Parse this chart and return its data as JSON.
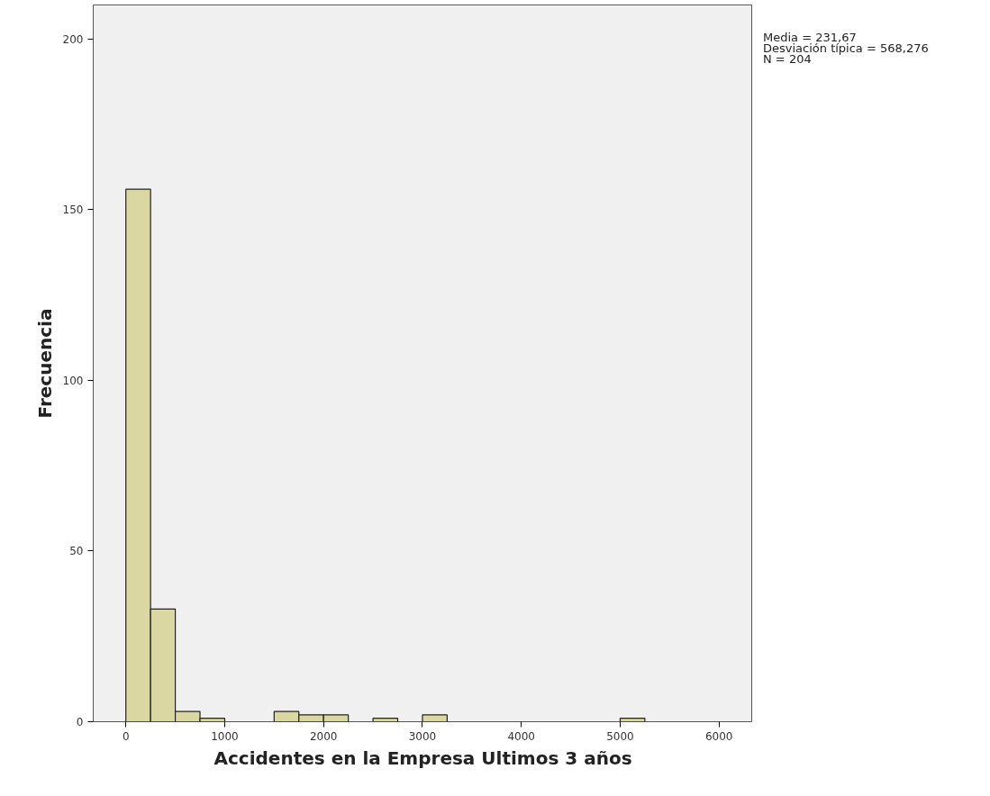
{
  "chart_data": {
    "type": "histogram",
    "xlabel": "Accidentes en la Empresa Ultimos 3 años",
    "ylabel": "Frecuencia",
    "bins": [
      0,
      250,
      500,
      750,
      1000,
      1250,
      1500,
      1750,
      2000,
      2250,
      2500,
      2750,
      3000,
      3250,
      3500,
      3750,
      4000,
      4250,
      4500,
      4750,
      5000,
      5250
    ],
    "values": [
      156,
      33,
      3,
      1,
      0,
      0,
      3,
      2,
      2,
      0,
      1,
      0,
      2,
      0,
      0,
      0,
      0,
      0,
      0,
      0,
      1
    ],
    "color": "#dbd7a3",
    "xlim": [
      -330,
      6340
    ],
    "ylim": [
      0,
      210
    ],
    "xticks": [
      0,
      1000,
      2000,
      3000,
      4000,
      5000,
      6000
    ],
    "yticks": [
      0,
      50,
      100,
      150,
      200
    ],
    "grid": false,
    "annotations": [
      "Media = 231,67",
      "Desviación típica = 568,276",
      "N = 204"
    ]
  }
}
